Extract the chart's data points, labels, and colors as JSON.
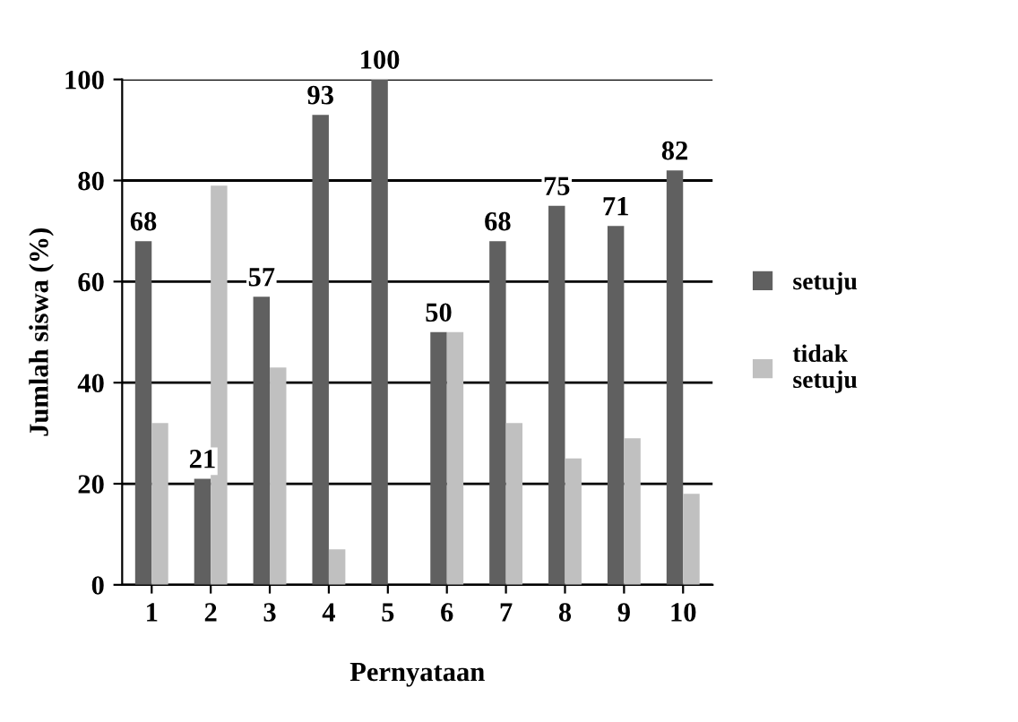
{
  "chart_data": {
    "type": "bar",
    "xlabel": "Pernyataan",
    "ylabel": "Jumlah siswa (%)",
    "categories": [
      "1",
      "2",
      "3",
      "4",
      "5",
      "6",
      "7",
      "8",
      "9",
      "10"
    ],
    "series": [
      {
        "name": "setuju",
        "color": "#606060",
        "values": [
          68,
          21,
          57,
          93,
          100,
          50,
          68,
          75,
          71,
          82
        ],
        "value_labels": [
          "68",
          "21",
          "57",
          "93",
          "100",
          "50",
          "68",
          "75",
          "71",
          "82"
        ]
      },
      {
        "name": "tidak setuju",
        "color": "#c0c0c0",
        "values": [
          32,
          79,
          43,
          7,
          0,
          50,
          32,
          25,
          29,
          18
        ]
      }
    ],
    "ylim": [
      0,
      100
    ],
    "yticks": [
      0,
      20,
      40,
      60,
      80,
      100
    ],
    "grid": "y",
    "legend": "right"
  }
}
